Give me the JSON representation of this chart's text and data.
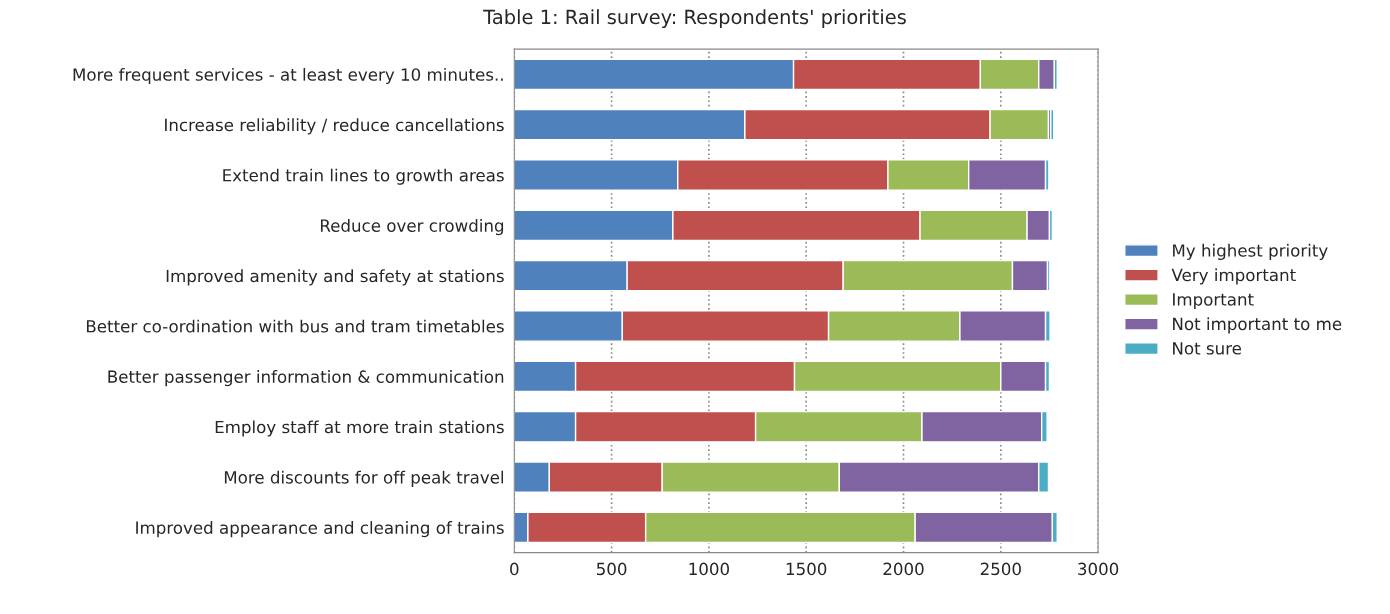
{
  "chart_data": {
    "type": "bar",
    "orientation": "horizontal",
    "stacked": true,
    "title": "Table 1: Rail survey: Respondents' priorities",
    "categories": [
      "More frequent services - at least every 10 minutes..",
      "Increase reliability / reduce cancellations",
      "Extend train lines to growth areas",
      "Reduce over crowding",
      "Improved amenity and safety at stations",
      "Better co-ordination with bus and tram timetables",
      "Better passenger information & communication",
      "Employ staff at more train stations",
      "More discounts for off peak travel",
      "Improved appearance and cleaning of trains"
    ],
    "series": [
      {
        "name": "My highest priority",
        "color": "#4f81bd",
        "values": [
          1435,
          1185,
          840,
          815,
          580,
          555,
          315,
          315,
          180,
          70
        ]
      },
      {
        "name": "Very important",
        "color": "#c0504d",
        "values": [
          960,
          1260,
          1080,
          1270,
          1110,
          1060,
          1125,
          925,
          580,
          605
        ]
      },
      {
        "name": "Important",
        "color": "#9bbb59",
        "values": [
          300,
          300,
          415,
          550,
          870,
          675,
          1060,
          855,
          910,
          1385
        ]
      },
      {
        "name": "Not important to me",
        "color": "#8064a2",
        "values": [
          80,
          12,
          395,
          115,
          180,
          440,
          230,
          615,
          1025,
          705
        ]
      },
      {
        "name": "Not sure",
        "color": "#4bacc6",
        "values": [
          15,
          15,
          17,
          15,
          12,
          23,
          20,
          28,
          50,
          25
        ]
      }
    ],
    "xlim": [
      0,
      3000
    ],
    "xticks": [
      0,
      500,
      1000,
      1500,
      2000,
      2500,
      3000
    ],
    "grid": "x",
    "legend": "right"
  }
}
